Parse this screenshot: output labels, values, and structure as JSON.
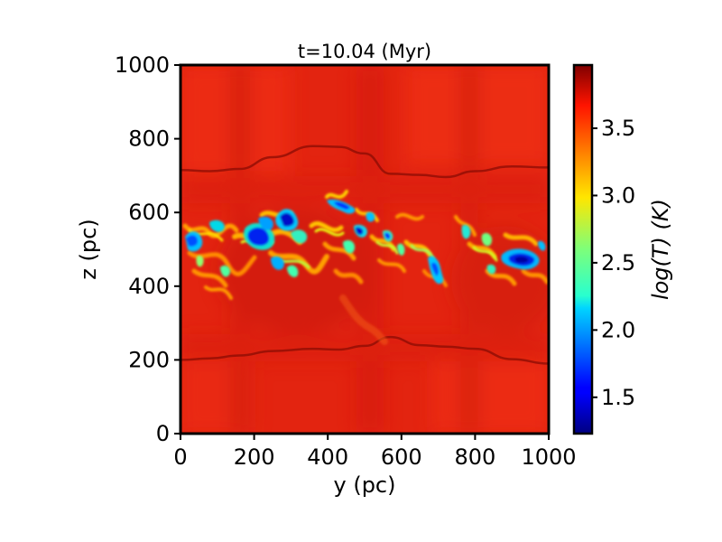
{
  "chart_data": {
    "type": "heatmap",
    "title": "t=10.04 (Myr)",
    "xlabel": "y (pc)",
    "ylabel": "z (pc)",
    "xlim": [
      0,
      1000
    ],
    "ylim": [
      0,
      1000
    ],
    "x_ticks": [
      "0",
      "200",
      "400",
      "600",
      "800",
      "1000"
    ],
    "y_ticks": [
      "0",
      "200",
      "400",
      "600",
      "800",
      "1000"
    ],
    "x_tick_values": [
      0,
      200,
      400,
      600,
      800,
      1000
    ],
    "y_tick_values": [
      0,
      200,
      400,
      600,
      800,
      1000
    ],
    "colorbar": {
      "label": "log(T) (K)",
      "colormap": "jet",
      "range": [
        1.23,
        3.97
      ],
      "ticks": [
        "1.5",
        "2.0",
        "2.5",
        "3.0",
        "3.5"
      ],
      "tick_values": [
        1.5,
        2.0,
        2.5,
        3.0,
        3.5
      ]
    },
    "background_color": "#e32410",
    "upper_boundary_z": [
      715,
      712,
      718,
      750,
      780,
      778,
      760,
      705,
      702,
      696,
      712,
      725,
      722
    ],
    "lower_boundary_z": [
      200,
      204,
      212,
      224,
      230,
      228,
      238,
      262,
      240,
      236,
      230,
      202,
      190
    ],
    "boundary_y": [
      0,
      80,
      160,
      250,
      360,
      430,
      500,
      570,
      650,
      720,
      800,
      900,
      1000
    ],
    "cold_clumps": [
      {
        "y": 50,
        "z": 520,
        "log_t": 1.9
      },
      {
        "y": 120,
        "z": 560,
        "log_t": 2.2
      },
      {
        "y": 200,
        "z": 540,
        "log_t": 1.6
      },
      {
        "y": 250,
        "z": 530,
        "log_t": 1.4
      },
      {
        "y": 290,
        "z": 580,
        "log_t": 1.3
      },
      {
        "y": 320,
        "z": 470,
        "log_t": 2.1
      },
      {
        "y": 400,
        "z": 560,
        "log_t": 2.3
      },
      {
        "y": 470,
        "z": 550,
        "log_t": 1.5
      },
      {
        "y": 480,
        "z": 450,
        "log_t": 2.0
      },
      {
        "y": 560,
        "z": 540,
        "log_t": 2.4
      },
      {
        "y": 700,
        "z": 440,
        "log_t": 2.1
      },
      {
        "y": 900,
        "z": 480,
        "log_t": 1.7
      },
      {
        "y": 930,
        "z": 470,
        "log_t": 1.5
      }
    ]
  }
}
